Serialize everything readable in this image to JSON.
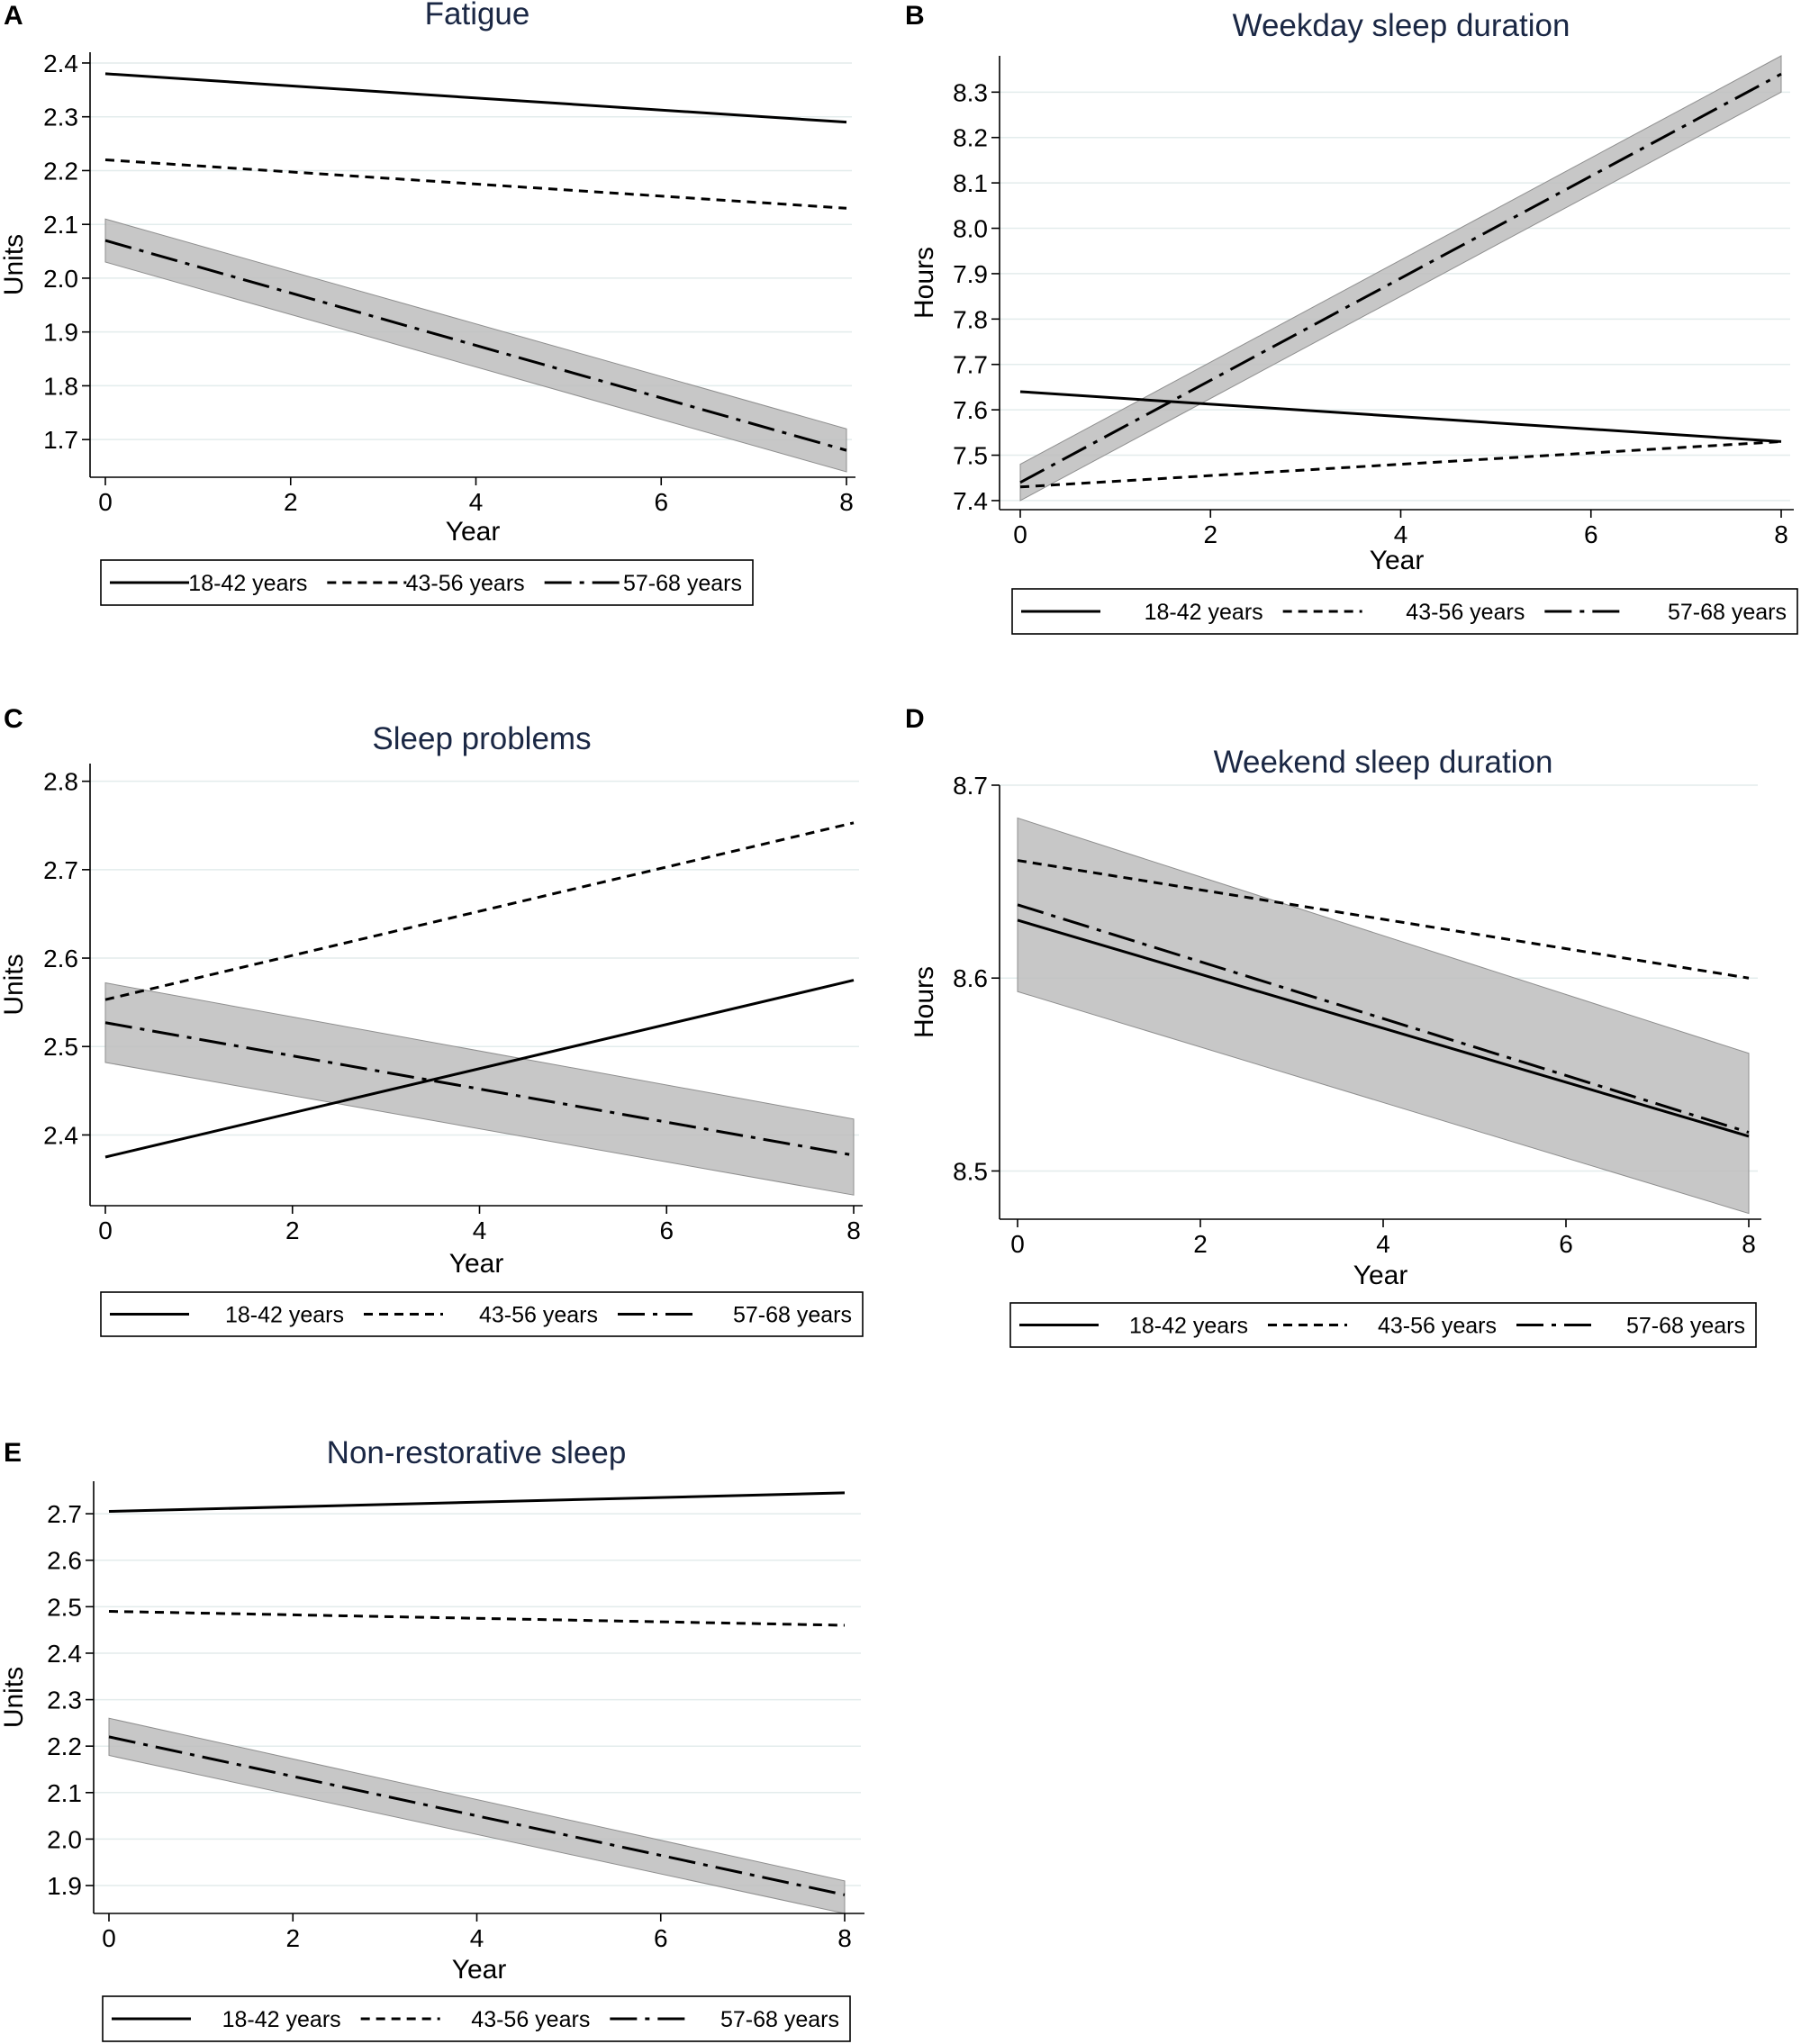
{
  "legend": [
    {
      "label": "18-42 years",
      "style": "solid"
    },
    {
      "label": "43-56 years",
      "style": "dash"
    },
    {
      "label": "57-68 years",
      "style": "dashdot"
    }
  ],
  "chart_data": [
    {
      "panel": "A",
      "type": "line",
      "title": "Fatigue",
      "xlabel": "Year",
      "ylabel": "Units",
      "xlim": [
        0,
        8
      ],
      "xticks": [
        0,
        2,
        4,
        6,
        8
      ],
      "ylim": [
        1.63,
        2.42
      ],
      "yticks": [
        1.7,
        1.8,
        1.9,
        2.0,
        2.1,
        2.2,
        2.3,
        2.4
      ],
      "ytick_decimals": 1,
      "series": [
        {
          "name": "18-42 years",
          "x": [
            0,
            8
          ],
          "y": [
            2.38,
            2.29
          ]
        },
        {
          "name": "43-56 years",
          "x": [
            0,
            8
          ],
          "y": [
            2.22,
            2.13
          ]
        },
        {
          "name": "57-68 years",
          "x": [
            0,
            8
          ],
          "y": [
            2.07,
            1.68
          ],
          "ci_lower": [
            2.03,
            1.64
          ],
          "ci_upper": [
            2.11,
            1.72
          ]
        }
      ]
    },
    {
      "panel": "B",
      "type": "line",
      "title": "Weekday sleep duration",
      "xlabel": "Year",
      "ylabel": "Hours",
      "xlim": [
        0,
        8
      ],
      "xticks": [
        0,
        2,
        4,
        6,
        8
      ],
      "ylim": [
        7.38,
        8.38
      ],
      "yticks": [
        7.4,
        7.5,
        7.6,
        7.7,
        7.8,
        7.9,
        8.0,
        8.1,
        8.2,
        8.3
      ],
      "ytick_decimals": 1,
      "series": [
        {
          "name": "18-42 years",
          "x": [
            0,
            8
          ],
          "y": [
            7.64,
            7.53
          ]
        },
        {
          "name": "43-56 years",
          "x": [
            0,
            8
          ],
          "y": [
            7.43,
            7.53
          ]
        },
        {
          "name": "57-68 years",
          "x": [
            0,
            8
          ],
          "y": [
            7.44,
            8.34
          ],
          "ci_lower": [
            7.4,
            8.3
          ],
          "ci_upper": [
            7.48,
            8.38
          ]
        }
      ]
    },
    {
      "panel": "C",
      "type": "line",
      "title": "Sleep problems",
      "xlabel": "Year",
      "ylabel": "Units",
      "xlim": [
        0,
        8
      ],
      "xticks": [
        0,
        2,
        4,
        6,
        8
      ],
      "ylim": [
        2.32,
        2.82
      ],
      "yticks": [
        2.4,
        2.5,
        2.6,
        2.7,
        2.8
      ],
      "ytick_decimals": 1,
      "series": [
        {
          "name": "18-42 years",
          "x": [
            0,
            8
          ],
          "y": [
            2.375,
            2.575
          ]
        },
        {
          "name": "43-56 years",
          "x": [
            0,
            8
          ],
          "y": [
            2.553,
            2.753
          ]
        },
        {
          "name": "57-68 years",
          "x": [
            0,
            8
          ],
          "y": [
            2.527,
            2.377
          ],
          "ci_lower": [
            2.482,
            2.332
          ],
          "ci_upper": [
            2.572,
            2.418
          ]
        }
      ]
    },
    {
      "panel": "D",
      "type": "line",
      "title": "Weekend sleep duration",
      "xlabel": "Year",
      "ylabel": "Hours",
      "xlim": [
        0,
        8
      ],
      "xticks": [
        0,
        2,
        4,
        6,
        8
      ],
      "ylim": [
        8.475,
        8.7
      ],
      "yticks": [
        8.5,
        8.6,
        8.7
      ],
      "ytick_decimals": 1,
      "series": [
        {
          "name": "18-42 years",
          "x": [
            0,
            8
          ],
          "y": [
            8.63,
            8.518
          ]
        },
        {
          "name": "43-56 years",
          "x": [
            0,
            8
          ],
          "y": [
            8.661,
            8.6
          ]
        },
        {
          "name": "57-68 years",
          "x": [
            0,
            8
          ],
          "y": [
            8.638,
            8.52
          ],
          "ci_lower": [
            8.593,
            8.478
          ],
          "ci_upper": [
            8.683,
            8.561
          ]
        }
      ]
    },
    {
      "panel": "E",
      "type": "line",
      "title": "Non-restorative sleep",
      "xlabel": "Year",
      "ylabel": "Units",
      "xlim": [
        0,
        8
      ],
      "xticks": [
        0,
        2,
        4,
        6,
        8
      ],
      "ylim": [
        1.84,
        2.77
      ],
      "yticks": [
        1.9,
        2.0,
        2.1,
        2.2,
        2.3,
        2.4,
        2.5,
        2.6,
        2.7
      ],
      "ytick_decimals": 1,
      "series": [
        {
          "name": "18-42 years",
          "x": [
            0,
            8
          ],
          "y": [
            2.705,
            2.745
          ]
        },
        {
          "name": "43-56 years",
          "x": [
            0,
            8
          ],
          "y": [
            2.49,
            2.46
          ]
        },
        {
          "name": "57-68 years",
          "x": [
            0,
            8
          ],
          "y": [
            2.22,
            1.88
          ],
          "ci_lower": [
            2.18,
            1.84
          ],
          "ci_upper": [
            2.26,
            1.91
          ]
        }
      ]
    }
  ]
}
